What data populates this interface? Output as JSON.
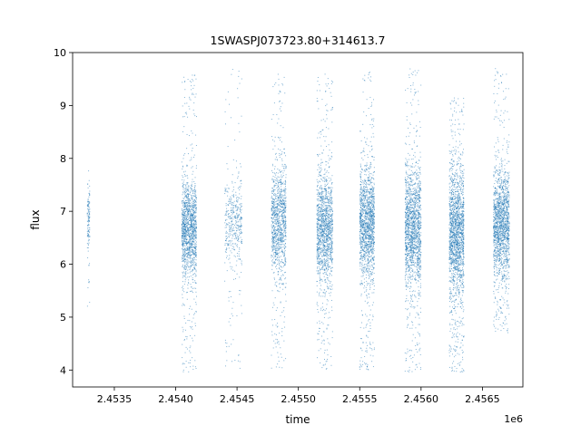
{
  "chart_data": {
    "type": "scatter",
    "title": "1SWASPJ073723.80+314613.7",
    "xlabel": "time",
    "ylabel": "flux",
    "x_offset_text": "1e6",
    "xlim": [
      2.45316,
      2.45683
    ],
    "ylim": [
      3.68,
      10.0
    ],
    "xticks": [
      2.4535,
      2.454,
      2.4545,
      2.455,
      2.4555,
      2.456,
      2.4565
    ],
    "xtick_labels": [
      "2.4535",
      "2.4540",
      "2.4545",
      "2.4550",
      "2.4555",
      "2.4560",
      "2.4565"
    ],
    "yticks": [
      4,
      5,
      6,
      7,
      8,
      9,
      10
    ],
    "ytick_labels": [
      "4",
      "5",
      "6",
      "7",
      "8",
      "9",
      "10"
    ],
    "grid": false,
    "marker_color": "#1f77b4",
    "series": [
      {
        "observing_seasons": [
          {
            "x_start": 2.45328,
            "x_end": 2.4533,
            "y_center": 6.8,
            "y_spread": 0.35,
            "y_min": 5.0,
            "y_max": 7.9,
            "n": 120
          },
          {
            "x_start": 2.45405,
            "x_end": 2.45417,
            "y_center": 6.7,
            "y_spread": 0.45,
            "y_min": 3.95,
            "y_max": 9.6,
            "n": 1400
          },
          {
            "x_start": 2.4544,
            "x_end": 2.45454,
            "y_center": 6.8,
            "y_spread": 0.4,
            "y_min": 4.0,
            "y_max": 9.7,
            "n": 450
          },
          {
            "x_start": 2.45478,
            "x_end": 2.4549,
            "y_center": 6.8,
            "y_spread": 0.5,
            "y_min": 4.0,
            "y_max": 9.6,
            "n": 1100
          },
          {
            "x_start": 2.45515,
            "x_end": 2.45528,
            "y_center": 6.7,
            "y_spread": 0.5,
            "y_min": 4.0,
            "y_max": 9.6,
            "n": 1400
          },
          {
            "x_start": 2.4555,
            "x_end": 2.45562,
            "y_center": 6.75,
            "y_spread": 0.5,
            "y_min": 3.95,
            "y_max": 9.65,
            "n": 1500
          },
          {
            "x_start": 2.45587,
            "x_end": 2.456,
            "y_center": 6.7,
            "y_spread": 0.55,
            "y_min": 3.95,
            "y_max": 9.7,
            "n": 1600
          },
          {
            "x_start": 2.45623,
            "x_end": 2.45635,
            "y_center": 6.6,
            "y_spread": 0.6,
            "y_min": 3.95,
            "y_max": 9.2,
            "n": 1800
          },
          {
            "x_start": 2.45659,
            "x_end": 2.45672,
            "y_center": 6.8,
            "y_spread": 0.5,
            "y_min": 4.7,
            "y_max": 9.7,
            "n": 1600
          }
        ]
      }
    ]
  }
}
